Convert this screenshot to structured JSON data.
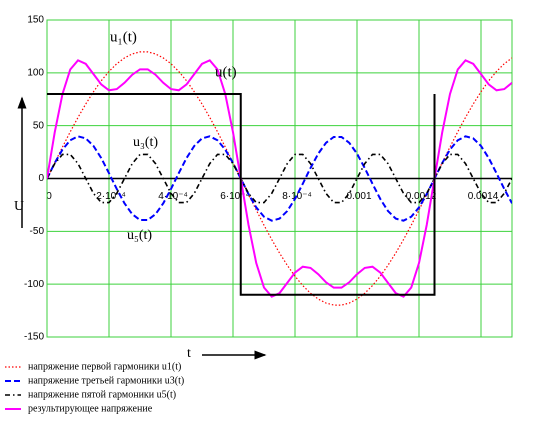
{
  "chart_data": {
    "type": "line",
    "x_label": "t",
    "y_label": "U",
    "grid": true,
    "grid_color": "#3cd23c",
    "legend": "bottom",
    "xlim": [
      0,
      0.0015
    ],
    "ylim": [
      -150,
      150
    ],
    "xticks": [
      0,
      {
        "value": 0.0002,
        "label": "2·10⁻⁴"
      },
      {
        "value": 0.0004,
        "label": "4·10⁻⁴"
      },
      {
        "value": 0.0006,
        "label": "6·10⁻⁴"
      },
      {
        "value": 0.0008,
        "label": "8·10⁻⁴"
      },
      0.001,
      0.0012,
      0.0014
    ],
    "yticks": [
      150,
      100,
      50,
      0,
      -50,
      -100,
      -150
    ],
    "annotations": [
      "u₁(t)",
      "u(t)",
      "u₃(t)",
      "u₅(t)"
    ],
    "x": [
      0,
      2.5e-05,
      5e-05,
      7.5e-05,
      0.0001,
      0.000125,
      0.00015,
      0.000175,
      0.0002,
      0.000225,
      0.00025,
      0.000275,
      0.0003,
      0.000325,
      0.00035,
      0.000375,
      0.0004,
      0.000425,
      0.00045,
      0.000475,
      0.0005,
      0.000525,
      0.00055,
      0.000575,
      0.0006,
      0.000625,
      0.00065,
      0.000675,
      0.0007,
      0.000725,
      0.00075,
      0.000775,
      0.0008,
      0.000825,
      0.00085,
      0.000875,
      0.0009,
      0.000925,
      0.00095,
      0.000975,
      0.001,
      0.001025,
      0.00105,
      0.001075,
      0.0011,
      0.001125,
      0.00115,
      0.001175,
      0.0012,
      0.001225,
      0.00125,
      0.001275,
      0.0013,
      0.001325,
      0.00135,
      0.001375,
      0.0014,
      0.001425,
      0.00145,
      0.001475,
      0.0015
    ],
    "series": [
      {
        "name": "напряжение первой гармоники u1(t)",
        "color": "#ff0000",
        "style": "dotted",
        "values": [
          0,
          15.0,
          29.8,
          44.2,
          57.8,
          70.5,
          82.1,
          92.5,
          101.3,
          108.6,
          114.1,
          117.9,
          119.8,
          119.8,
          117.9,
          114.1,
          108.6,
          101.3,
          92.5,
          82.1,
          70.5,
          57.8,
          44.2,
          29.8,
          15.0,
          0,
          -15.0,
          -29.8,
          -44.2,
          -57.8,
          -70.5,
          -82.1,
          -92.5,
          -101.3,
          -108.6,
          -114.1,
          -117.9,
          -119.8,
          -119.8,
          -117.9,
          -114.1,
          -108.6,
          -101.3,
          -92.5,
          -82.1,
          -70.5,
          -57.8,
          -44.2,
          -29.8,
          -15.0,
          0,
          15.0,
          29.8,
          44.2,
          57.8,
          70.5,
          82.1,
          92.5,
          101.3,
          108.6,
          114.1
        ]
      },
      {
        "name": "напряжение третьей гармоники u3(t)",
        "color": "#0000ff",
        "style": "dashed",
        "values": [
          0,
          14.7,
          27.4,
          36.2,
          39.9,
          38.0,
          30.8,
          19.3,
          5.0,
          -9.9,
          -23.5,
          -33.8,
          -39.3,
          -39.3,
          -33.8,
          -23.5,
          -9.9,
          5.0,
          19.3,
          30.8,
          38.0,
          39.9,
          36.2,
          27.4,
          14.7,
          0,
          -14.7,
          -27.4,
          -36.2,
          -39.9,
          -38.0,
          -30.8,
          -19.3,
          -5.0,
          9.9,
          23.5,
          33.8,
          39.3,
          39.3,
          33.8,
          23.5,
          9.9,
          -5.0,
          -19.3,
          -30.8,
          -38.0,
          -39.9,
          -36.2,
          -27.4,
          -14.7,
          0,
          14.7,
          27.4,
          36.2,
          39.9,
          38.0,
          30.8,
          19.3,
          5.0,
          -9.9,
          -23.5
        ]
      },
      {
        "name": "напряжение пятой гармоники u5(t)",
        "color": "#000000",
        "style": "dashdot",
        "values": [
          0,
          14.1,
          22.8,
          22.8,
          14.1,
          0,
          -14.1,
          -22.8,
          -22.8,
          -14.1,
          0,
          14.1,
          22.8,
          22.8,
          14.1,
          0,
          -14.1,
          -22.8,
          -22.8,
          -14.1,
          0,
          14.1,
          22.8,
          22.8,
          14.1,
          0,
          -14.1,
          -22.8,
          -22.8,
          -14.1,
          0,
          14.1,
          22.8,
          22.8,
          14.1,
          0,
          -14.1,
          -22.8,
          -22.8,
          -14.1,
          0,
          14.1,
          22.8,
          22.8,
          14.1,
          0,
          -14.1,
          -22.8,
          -22.8,
          -14.1,
          0,
          14.1,
          22.8,
          22.8,
          14.1,
          0,
          -14.1,
          -22.8,
          -22.8,
          -14.1,
          0
        ]
      },
      {
        "name": "результирующее напряжение",
        "color": "#ff00ff",
        "style": "solid",
        "values": [
          0,
          43.8,
          80.0,
          103.2,
          111.8,
          108.5,
          98.8,
          89.0,
          83.5,
          84.6,
          90.6,
          98.2,
          103.3,
          103.3,
          98.2,
          90.6,
          84.6,
          83.5,
          89.0,
          98.8,
          108.5,
          111.8,
          103.2,
          80.0,
          43.8,
          0,
          -43.8,
          -80.0,
          -103.2,
          -111.8,
          -108.5,
          -98.8,
          -89.0,
          -83.5,
          -84.6,
          -90.6,
          -98.2,
          -103.3,
          -103.3,
          -98.2,
          -90.6,
          -84.6,
          -83.5,
          -89.0,
          -98.8,
          -108.5,
          -111.8,
          -103.2,
          -80.0,
          -43.8,
          0,
          43.8,
          80.0,
          103.2,
          111.8,
          108.5,
          98.8,
          89.0,
          83.5,
          84.6,
          90.6
        ]
      },
      {
        "color": "#000000",
        "style": "solid",
        "x": [
          0,
          0.000625,
          0.000625,
          0.00125,
          0.00125
        ],
        "values": [
          80,
          80,
          -110,
          -110,
          80
        ]
      }
    ]
  }
}
